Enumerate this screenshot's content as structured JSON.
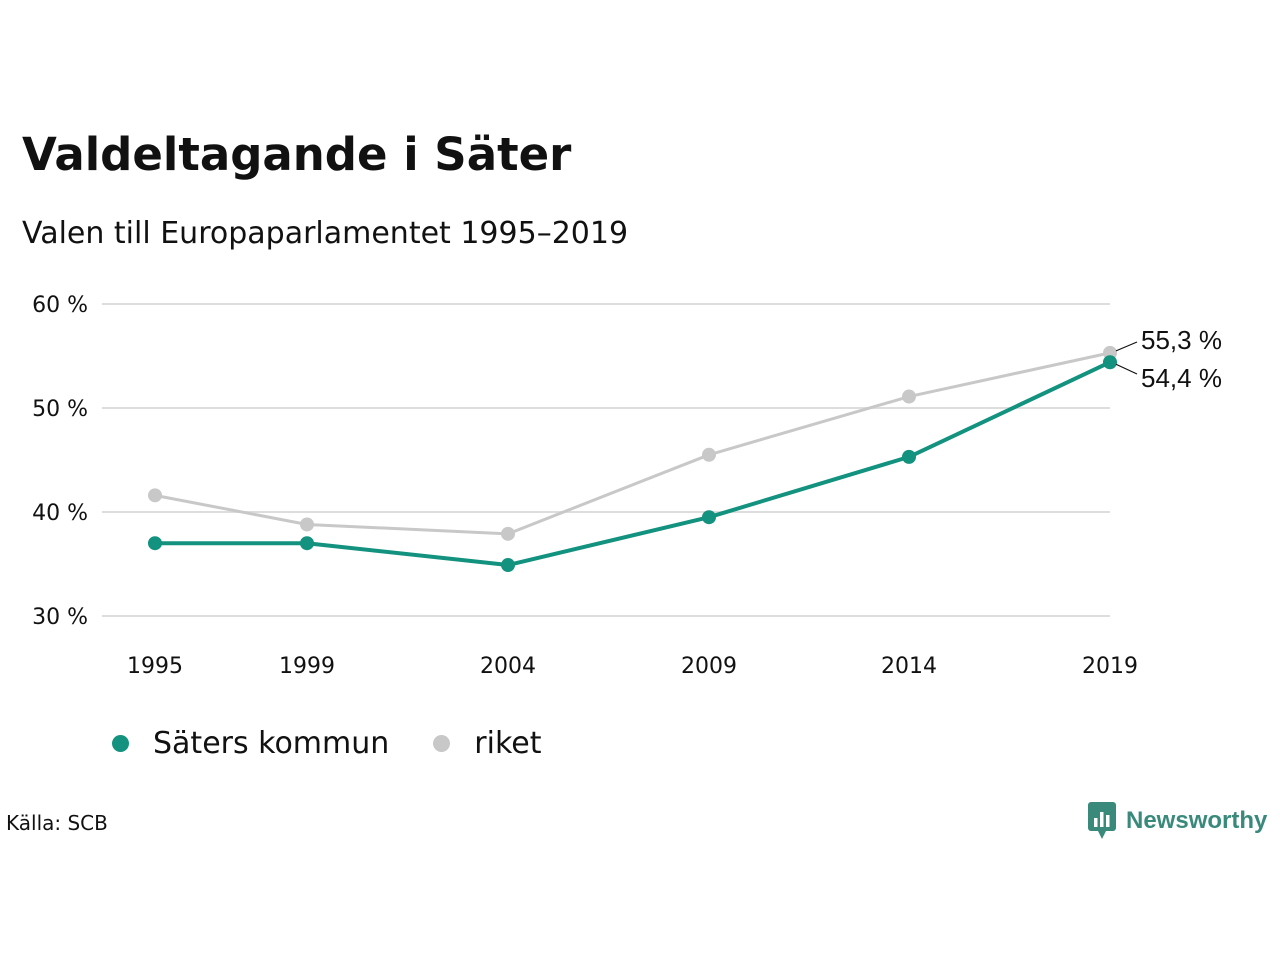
{
  "title": "Valdeltagande i Säter",
  "subtitle": "Valen till Europaparlamentet 1995–2019",
  "source": "Källa: SCB",
  "brand": "Newsworthy",
  "colors": {
    "sater": "#12927f",
    "riket": "#c8c8c8",
    "grid": "#dddddd",
    "brand": "#3a8a7c"
  },
  "chart_data": {
    "type": "line",
    "title": "Valdeltagande i Säter",
    "subtitle": "Valen till Europaparlamentet 1995–2019",
    "x": [
      1995,
      1999,
      2004,
      2009,
      2014,
      2019
    ],
    "categories": [
      "1995",
      "1999",
      "2004",
      "2009",
      "2014",
      "2019"
    ],
    "y_ticks": [
      30,
      40,
      50,
      60
    ],
    "y_tick_labels": [
      "30 %",
      "40 %",
      "50 %",
      "60 %"
    ],
    "ylim": [
      30,
      60
    ],
    "grid": true,
    "legend_position": "bottom-left",
    "series": [
      {
        "name": "Säters kommun",
        "color": "#12927f",
        "values": [
          37.0,
          37.0,
          34.9,
          39.5,
          45.3,
          54.4
        ],
        "end_label": "54,4 %"
      },
      {
        "name": "riket",
        "color": "#c8c8c8",
        "values": [
          41.6,
          38.8,
          37.9,
          45.5,
          51.1,
          55.3
        ],
        "end_label": "55,3 %"
      }
    ]
  }
}
